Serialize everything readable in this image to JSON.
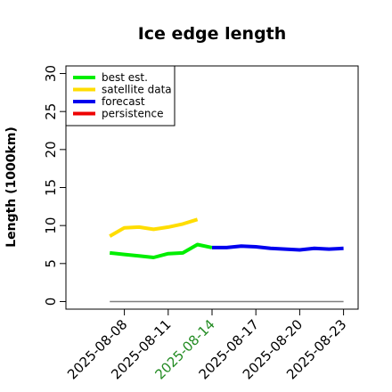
{
  "chart_data": {
    "type": "line",
    "title": "Ice edge length",
    "xlabel": "",
    "ylabel": "Length (1000km)",
    "ylim": [
      -1,
      31
    ],
    "xlim": [
      "2025-08-04",
      "2025-08-24"
    ],
    "yticks": [
      0,
      5,
      10,
      15,
      20,
      25,
      30
    ],
    "xticks": [
      "2025-08-08",
      "2025-08-11",
      "2025-08-14",
      "2025-08-17",
      "2025-08-20",
      "2025-08-23"
    ],
    "highlight_tick": "2025-08-14",
    "highlight_color": "#228b22",
    "grid": false,
    "legend_position": "top-left",
    "series": [
      {
        "name": "best est.",
        "color": "#00ee00",
        "x": [
          "2025-08-07",
          "2025-08-08",
          "2025-08-09",
          "2025-08-10",
          "2025-08-11",
          "2025-08-12",
          "2025-08-13",
          "2025-08-14"
        ],
        "y": [
          6.4,
          6.2,
          6.0,
          5.8,
          6.3,
          6.4,
          7.5,
          7.1
        ]
      },
      {
        "name": "satellite data",
        "color": "#ffdd00",
        "x": [
          "2025-08-07",
          "2025-08-08",
          "2025-08-09",
          "2025-08-10",
          "2025-08-11",
          "2025-08-12",
          "2025-08-13"
        ],
        "y": [
          8.6,
          9.7,
          9.8,
          9.5,
          9.8,
          10.2,
          10.8
        ]
      },
      {
        "name": "forecast",
        "color": "#0000ee",
        "x": [
          "2025-08-14",
          "2025-08-15",
          "2025-08-16",
          "2025-08-17",
          "2025-08-18",
          "2025-08-19",
          "2025-08-20",
          "2025-08-21",
          "2025-08-22",
          "2025-08-23"
        ],
        "y": [
          7.1,
          7.1,
          7.3,
          7.2,
          7.0,
          6.9,
          6.8,
          7.0,
          6.9,
          7.0
        ]
      },
      {
        "name": "persistence",
        "color": "#ee0000",
        "x": [],
        "y": []
      }
    ],
    "baseline": {
      "y": 0,
      "from": "2025-08-07",
      "to": "2025-08-23",
      "color": "#808080"
    }
  }
}
